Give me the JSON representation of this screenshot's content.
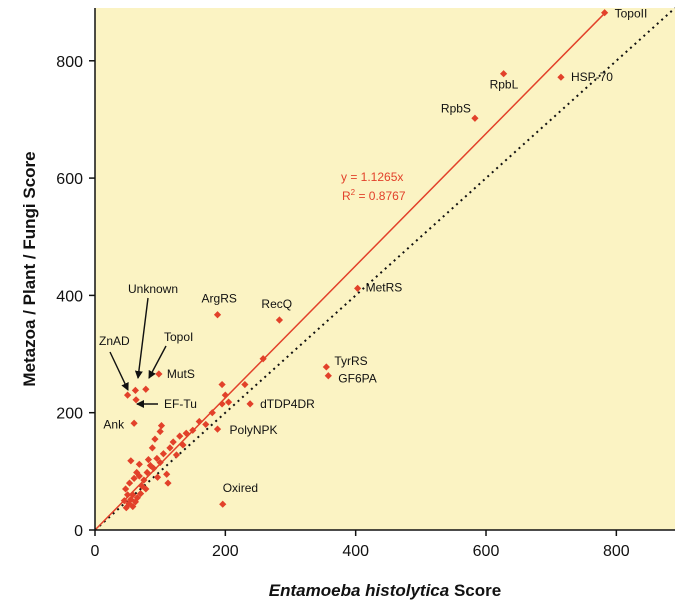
{
  "chart_data": {
    "type": "scatter",
    "title": "",
    "xlabel_italic": "Entamoeba histolytica",
    "xlabel_rest": " Score",
    "ylabel": "Metazoa / Plant / Fungi Score",
    "xlim": [
      0,
      890
    ],
    "ylim": [
      0,
      890
    ],
    "xticks": [
      0,
      200,
      400,
      600,
      800
    ],
    "yticks": [
      0,
      200,
      400,
      600,
      800
    ],
    "grid": false,
    "colors": {
      "background": "#fbf3c3",
      "points": "#e2412a",
      "fit_line": "#e2412a",
      "identity_line": "#111111"
    },
    "fit": {
      "slope": 1.1265,
      "equation": "y = 1.1265x",
      "r2_prefix": "R",
      "r2_exp": "2",
      "r2_value": " = 0.8767"
    },
    "identity_line": {
      "slope": 1
    },
    "labeled_points": [
      {
        "name": "TopoII",
        "x": 782,
        "y": 882
      },
      {
        "name": "RpbL",
        "x": 627,
        "y": 778
      },
      {
        "name": "HSP-70",
        "x": 715,
        "y": 772
      },
      {
        "name": "RpbS",
        "x": 583,
        "y": 702
      },
      {
        "name": "MetRS",
        "x": 403,
        "y": 412
      },
      {
        "name": "ArgRS",
        "x": 188,
        "y": 367
      },
      {
        "name": "RecQ",
        "x": 283,
        "y": 358
      },
      {
        "name": "TyrRS",
        "x": 355,
        "y": 278
      },
      {
        "name": "GF6PA",
        "x": 358,
        "y": 263
      },
      {
        "name": "MutS",
        "x": 98,
        "y": 266
      },
      {
        "name": "dTDP4DR",
        "x": 238,
        "y": 215
      },
      {
        "name": "PolyNPK",
        "x": 188,
        "y": 172
      },
      {
        "name": "Ank",
        "x": 60,
        "y": 182
      },
      {
        "name": "Oxired",
        "x": 196,
        "y": 44
      }
    ],
    "arrow_annotations": [
      {
        "name": "Unknown",
        "x": 62,
        "y": 238
      },
      {
        "name": "TopoI",
        "x": 78,
        "y": 240
      },
      {
        "name": "ZnAD",
        "x": 50,
        "y": 230
      },
      {
        "name": "EF-Tu",
        "x": 63,
        "y": 222
      }
    ],
    "points": [
      {
        "x": 48,
        "y": 38
      },
      {
        "x": 52,
        "y": 45
      },
      {
        "x": 55,
        "y": 52
      },
      {
        "x": 58,
        "y": 40
      },
      {
        "x": 50,
        "y": 60
      },
      {
        "x": 62,
        "y": 48
      },
      {
        "x": 65,
        "y": 55
      },
      {
        "x": 47,
        "y": 70
      },
      {
        "x": 70,
        "y": 62
      },
      {
        "x": 53,
        "y": 80
      },
      {
        "x": 60,
        "y": 88
      },
      {
        "x": 72,
        "y": 75
      },
      {
        "x": 68,
        "y": 92
      },
      {
        "x": 75,
        "y": 85
      },
      {
        "x": 80,
        "y": 98
      },
      {
        "x": 85,
        "y": 110
      },
      {
        "x": 90,
        "y": 105
      },
      {
        "x": 95,
        "y": 122
      },
      {
        "x": 100,
        "y": 115
      },
      {
        "x": 105,
        "y": 130
      },
      {
        "x": 110,
        "y": 95
      },
      {
        "x": 115,
        "y": 140
      },
      {
        "x": 120,
        "y": 150
      },
      {
        "x": 125,
        "y": 128
      },
      {
        "x": 130,
        "y": 160
      },
      {
        "x": 135,
        "y": 145
      },
      {
        "x": 140,
        "y": 165
      },
      {
        "x": 150,
        "y": 170
      },
      {
        "x": 160,
        "y": 185
      },
      {
        "x": 170,
        "y": 180
      },
      {
        "x": 180,
        "y": 200
      },
      {
        "x": 195,
        "y": 215
      },
      {
        "x": 200,
        "y": 230
      },
      {
        "x": 205,
        "y": 218
      },
      {
        "x": 195,
        "y": 248
      },
      {
        "x": 230,
        "y": 248
      },
      {
        "x": 258,
        "y": 292
      },
      {
        "x": 55,
        "y": 118
      },
      {
        "x": 68,
        "y": 112
      },
      {
        "x": 88,
        "y": 140
      },
      {
        "x": 100,
        "y": 168
      },
      {
        "x": 102,
        "y": 178
      },
      {
        "x": 92,
        "y": 155
      },
      {
        "x": 112,
        "y": 80
      },
      {
        "x": 78,
        "y": 70
      },
      {
        "x": 58,
        "y": 60
      },
      {
        "x": 45,
        "y": 50
      },
      {
        "x": 82,
        "y": 120
      },
      {
        "x": 96,
        "y": 90
      },
      {
        "x": 64,
        "y": 98
      }
    ]
  }
}
